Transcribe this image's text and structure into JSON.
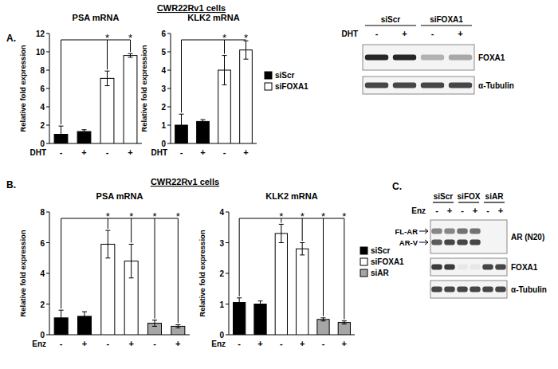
{
  "chart_data": [
    {
      "type": "bar",
      "title": "PSA mRNA",
      "ylabel": "Relative fold expression",
      "xlabel": "DHT",
      "categories": [
        "-",
        "+",
        "-",
        "+"
      ],
      "ylim": [
        0,
        12
      ],
      "yticks": [
        0,
        2,
        4,
        6,
        8,
        10,
        12
      ],
      "series": [
        {
          "name": "siScr",
          "color": "#000000",
          "values": [
            1.0,
            1.3,
            null,
            null
          ],
          "errors": [
            0.9,
            0.2,
            null,
            null
          ]
        },
        {
          "name": "siFOXA1",
          "color": "#ffffff",
          "values": [
            null,
            null,
            7.1,
            9.6
          ],
          "errors": [
            null,
            null,
            0.8,
            0.2
          ]
        }
      ],
      "annotations": [
        {
          "text": "*",
          "category": 2
        },
        {
          "text": "*",
          "category": 3
        }
      ]
    },
    {
      "type": "bar",
      "title": "KLK2 mRNA",
      "ylabel": "Relative fold expression",
      "xlabel": "DHT",
      "categories": [
        "-",
        "+",
        "-",
        "+"
      ],
      "ylim": [
        0,
        6
      ],
      "yticks": [
        0,
        1,
        2,
        3,
        4,
        5,
        6
      ],
      "legend": "right",
      "series": [
        {
          "name": "siScr",
          "color": "#000000",
          "values": [
            1.0,
            1.2,
            null,
            null
          ],
          "errors": [
            0.6,
            0.1,
            null,
            null
          ]
        },
        {
          "name": "siFOXA1",
          "color": "#ffffff",
          "values": [
            null,
            null,
            4.0,
            5.1
          ],
          "errors": [
            null,
            null,
            0.8,
            0.5
          ]
        }
      ],
      "annotations": [
        {
          "text": "*",
          "category": 2
        },
        {
          "text": "*",
          "category": 3
        }
      ]
    },
    {
      "type": "bar",
      "title": "PSA mRNA",
      "ylabel": "Relative fold expression",
      "xlabel": "Enz",
      "categories": [
        "-",
        "+",
        "-",
        "+",
        "-",
        "+"
      ],
      "ylim": [
        0,
        8
      ],
      "yticks": [
        0,
        2,
        4,
        6,
        8
      ],
      "series": [
        {
          "name": "siScr",
          "color": "#000000",
          "values": [
            1.1,
            1.2,
            null,
            null,
            null,
            null
          ],
          "errors": [
            0.5,
            0.3,
            null,
            null,
            null,
            null
          ]
        },
        {
          "name": "siFOXA1",
          "color": "#ffffff",
          "values": [
            null,
            null,
            5.9,
            4.8,
            null,
            null
          ],
          "errors": [
            null,
            null,
            0.9,
            1.1,
            null,
            null
          ]
        },
        {
          "name": "siAR",
          "color": "#a6a6a6",
          "values": [
            null,
            null,
            null,
            null,
            0.75,
            0.55
          ],
          "errors": [
            null,
            null,
            null,
            null,
            0.2,
            0.1
          ]
        }
      ],
      "annotations": [
        {
          "text": "*",
          "category": 2
        },
        {
          "text": "*",
          "category": 3
        },
        {
          "text": "*",
          "category": 4
        },
        {
          "text": "*",
          "category": 5
        }
      ]
    },
    {
      "type": "bar",
      "title": "KLK2 mRNA",
      "ylabel": "Relative fold expression",
      "xlabel": "Enz",
      "categories": [
        "-",
        "+",
        "-",
        "+",
        "-",
        "+"
      ],
      "ylim": [
        0,
        4
      ],
      "yticks": [
        0,
        1,
        2,
        3,
        4
      ],
      "legend": "right",
      "series": [
        {
          "name": "siScr",
          "color": "#000000",
          "values": [
            1.05,
            1.0,
            null,
            null,
            null,
            null
          ],
          "errors": [
            0.15,
            0.1,
            null,
            null,
            null,
            null
          ]
        },
        {
          "name": "siFOXA1",
          "color": "#ffffff",
          "values": [
            null,
            null,
            3.3,
            2.8,
            null,
            null
          ],
          "errors": [
            null,
            null,
            0.3,
            0.2,
            null,
            null
          ]
        },
        {
          "name": "siAR",
          "color": "#a6a6a6",
          "values": [
            null,
            null,
            null,
            null,
            0.5,
            0.4
          ],
          "errors": [
            null,
            null,
            null,
            null,
            0.05,
            0.05
          ]
        }
      ],
      "annotations": [
        {
          "text": "*",
          "category": 2
        },
        {
          "text": "*",
          "category": 3
        },
        {
          "text": "*",
          "category": 4
        },
        {
          "text": "*",
          "category": 5
        }
      ]
    }
  ],
  "panel_labels": [
    "A.",
    "B.",
    "C."
  ],
  "cell_line_labels": [
    "CWR22Rv1 cells",
    "CWR22Rv1 cells"
  ],
  "blots": [
    {
      "groups": [
        "siScr",
        "siFOXA1"
      ],
      "treatment": "DHT",
      "lane_signs": [
        "-",
        "+",
        "-",
        "+"
      ],
      "rows": [
        {
          "label": "FOXA1",
          "bands": [
            [
              0.95,
              0.95,
              0.3,
              0.35
            ]
          ]
        },
        {
          "label": "α-Tubulin",
          "bands": [
            [
              0.8,
              0.8,
              0.8,
              0.8
            ]
          ]
        }
      ]
    },
    {
      "groups": [
        "siScr",
        "siFOX",
        "siAR"
      ],
      "treatment": "Enz",
      "lane_signs": [
        "-",
        "+",
        "-",
        "+",
        "-",
        "+"
      ],
      "rows": [
        {
          "label": "AR (N20)",
          "band_labels": [
            "FL-AR",
            "AR-V"
          ],
          "bands": [
            [
              0.5,
              0.5,
              0.6,
              0.6,
              0.0,
              0.0
            ],
            [
              0.7,
              0.8,
              0.8,
              0.8,
              0.0,
              0.0
            ]
          ]
        },
        {
          "label": "FOXA1",
          "bands": [
            [
              0.85,
              0.85,
              0.05,
              0.05,
              0.8,
              0.8
            ]
          ]
        },
        {
          "label": "α-Tubulin",
          "bands": [
            [
              0.8,
              0.8,
              0.8,
              0.8,
              0.8,
              0.8
            ]
          ]
        }
      ]
    }
  ]
}
